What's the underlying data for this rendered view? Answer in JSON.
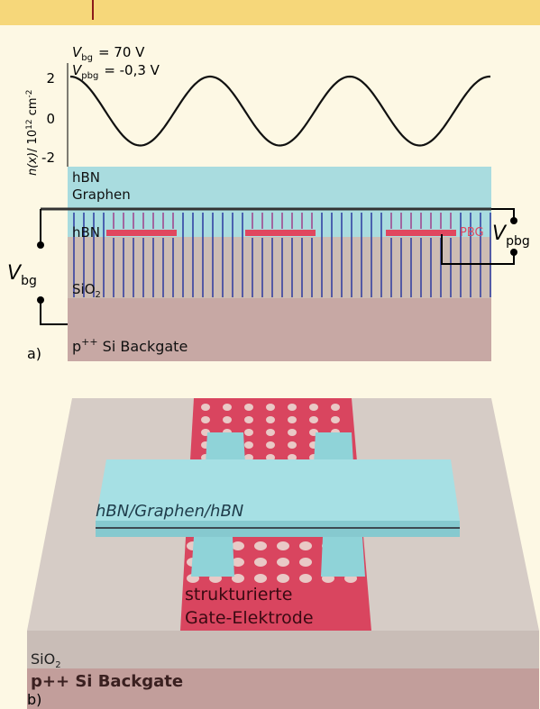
{
  "panel_a": {
    "label": "a)",
    "params": [
      {
        "symbol": "V",
        "sub": "bg",
        "value": "= 70 V"
      },
      {
        "symbol": "V",
        "sub": "pbg",
        "value": "= -0,3 V"
      }
    ],
    "ylabel": {
      "var": "n(x)",
      "unit": "/ 10",
      "exp": "12",
      "unit2": " cm",
      "exp2": "-2"
    },
    "yticks": [
      "2",
      "0",
      "-2"
    ],
    "layers": {
      "hbn_top": "hBN",
      "graphene": "Graphen",
      "hbn_bottom": "hBN",
      "sio2": {
        "text": "SiO",
        "sub": "2"
      },
      "backgate": {
        "prefix": "p",
        "sup": "++",
        "text": " Si Backgate"
      }
    },
    "pbg": "PBG",
    "vbg": {
      "symbol": "V",
      "sub": "bg"
    },
    "vpbg": {
      "symbol": "V",
      "sub": "pbg"
    }
  },
  "panel_b": {
    "label": "b)",
    "stack": "hBN/Graphen/hBN",
    "electrode": [
      "strukturierte",
      "Gate-Elektrode"
    ],
    "sio2": {
      "text": "SiO",
      "sub": "2"
    },
    "backgate": "p++ Si Backgate"
  }
}
